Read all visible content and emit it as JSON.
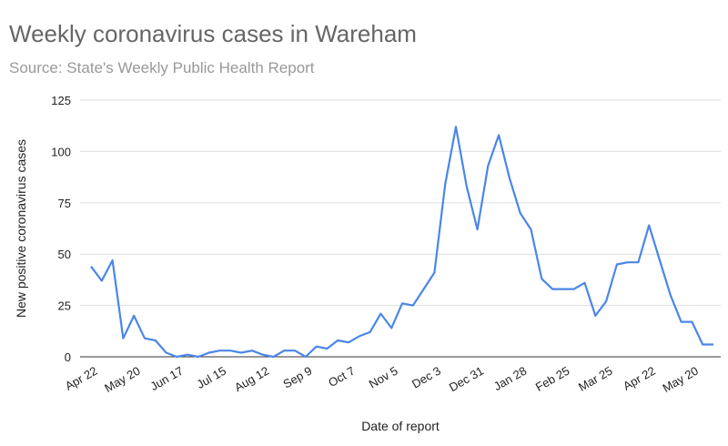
{
  "chart_data": {
    "type": "line",
    "title": "Weekly coronavirus cases in Wareham",
    "subtitle": "Source: State's Weekly Public Health Report",
    "x_label": "Date of report",
    "y_label": "New positive coronavirus cases",
    "categories": [
      "Apr 22",
      null,
      null,
      null,
      "May 20",
      null,
      null,
      null,
      "Jun 17",
      null,
      null,
      null,
      "Jul 15",
      null,
      null,
      null,
      "Aug 12",
      null,
      null,
      null,
      "Sep 9",
      null,
      null,
      null,
      "Oct 7",
      null,
      null,
      null,
      "Nov 5",
      null,
      null,
      null,
      "Dec 3",
      null,
      null,
      null,
      "Dec 31",
      null,
      null,
      null,
      "Jan 28",
      null,
      null,
      null,
      "Feb 25",
      null,
      null,
      null,
      "Mar 25",
      null,
      null,
      null,
      "Apr 22",
      null,
      null,
      null,
      "May 20",
      null,
      null
    ],
    "series": [
      {
        "name": "New positive coronavirus cases",
        "color": "#4a86e8",
        "values": [
          44,
          37,
          47,
          9,
          20,
          9,
          8,
          2,
          0,
          1,
          0,
          2,
          3,
          3,
          2,
          3,
          1,
          0,
          3,
          3,
          0,
          5,
          4,
          8,
          7,
          10,
          12,
          21,
          14,
          26,
          25,
          33,
          41,
          84,
          112,
          83,
          62,
          93,
          108,
          87,
          70,
          62,
          38,
          33,
          33,
          33,
          36,
          20,
          27,
          45,
          46,
          46,
          64,
          47,
          30,
          17,
          17,
          6,
          6
        ]
      }
    ],
    "ylim": [
      0,
      125
    ],
    "yticks": [
      0,
      25,
      50,
      75,
      100,
      125
    ],
    "grid": true
  }
}
